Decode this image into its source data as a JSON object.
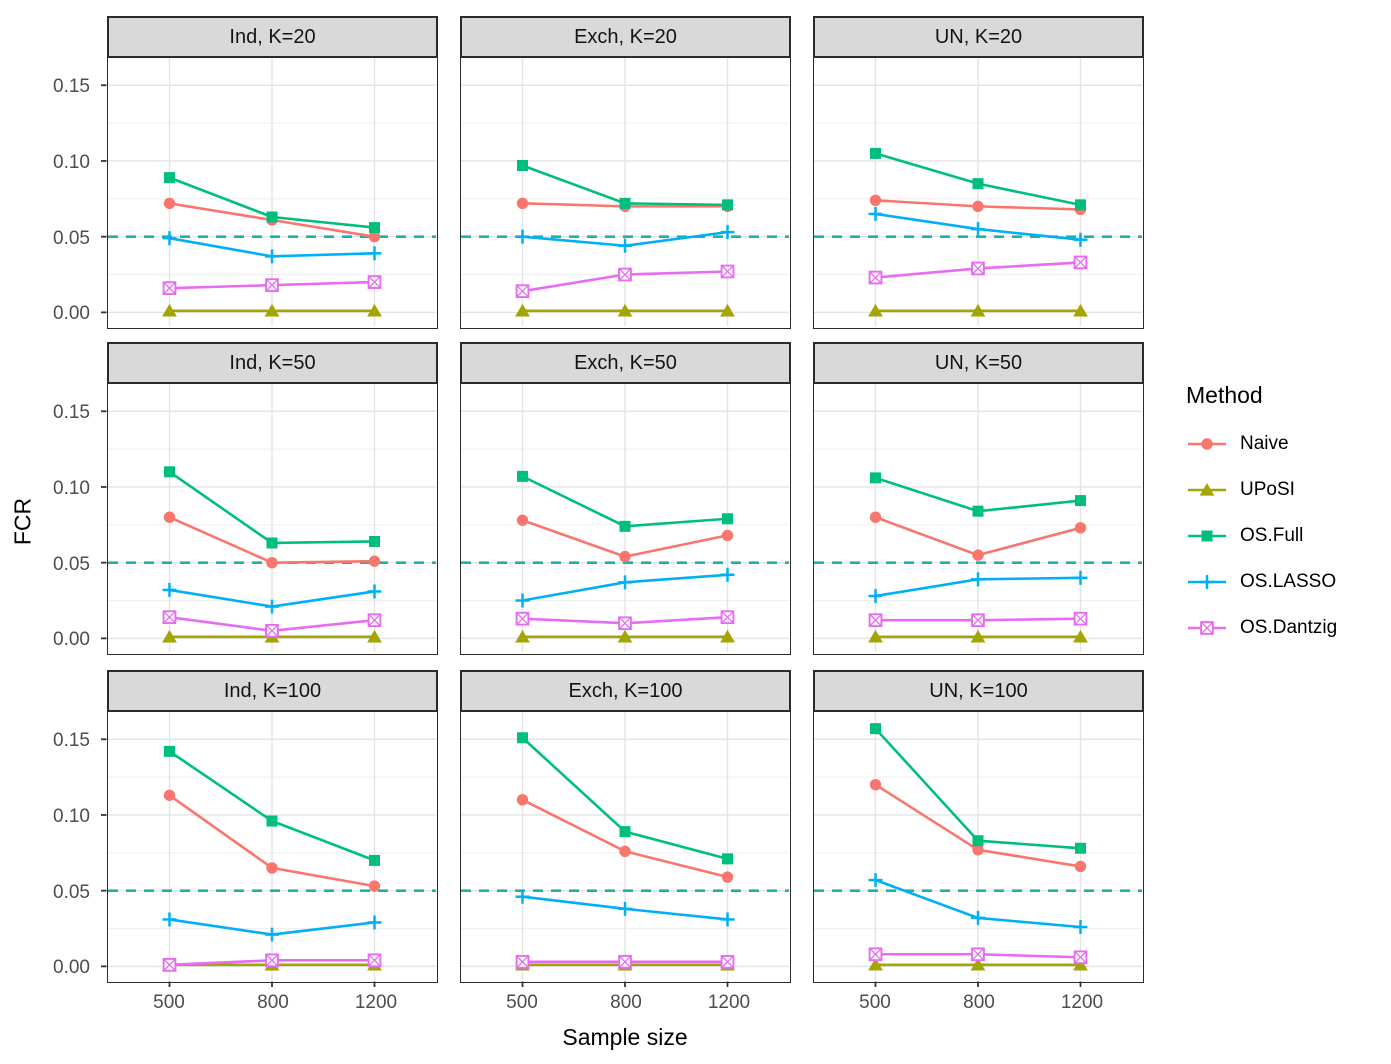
{
  "figure": {
    "x_axis_title": "Sample size",
    "y_axis_title": "FCR"
  },
  "legend": {
    "title": "Method",
    "items": [
      {
        "label": "Naive",
        "color": "#F8766D",
        "marker": "circle"
      },
      {
        "label": "UPoSI",
        "color": "#A3A500",
        "marker": "triangle"
      },
      {
        "label": "OS.Full",
        "color": "#00BF7D",
        "marker": "square"
      },
      {
        "label": "OS.LASSO",
        "color": "#00B0F6",
        "marker": "plus"
      },
      {
        "label": "OS.Dantzig",
        "color": "#E76BF3",
        "marker": "square-x"
      }
    ]
  },
  "chart_data": {
    "type": "line",
    "title": "",
    "xlabel": "Sample size",
    "ylabel": "FCR",
    "x_categories": [
      500,
      800,
      1200
    ],
    "x_tick_labels": [
      "500",
      "800",
      "1200"
    ],
    "y_tick_labels": [
      "0.00",
      "0.05",
      "0.10",
      "0.15"
    ],
    "y_major_ticks": [
      0,
      0.05,
      0.1,
      0.15
    ],
    "y_minor_ticks": [
      0.025,
      0.075,
      0.125
    ],
    "ylim": [
      -0.009,
      0.168
    ],
    "grid": "major-and-minor",
    "legend_position": "right",
    "reference_line": {
      "y": 0.05,
      "style": "dashed",
      "color": "#1CB2A6"
    },
    "series_order": [
      "Naive",
      "UPoSI",
      "OS.Full",
      "OS.LASSO",
      "OS.Dantzig"
    ],
    "facet_layout": {
      "rows": [
        "K=20",
        "K=50",
        "K=100"
      ],
      "cols": [
        "Ind",
        "Exch",
        "UN"
      ]
    },
    "facets": [
      {
        "strip": "Ind, K=20",
        "series": {
          "Naive": [
            0.072,
            0.061,
            0.05
          ],
          "UPoSI": [
            0.001,
            0.001,
            0.001
          ],
          "OS.Full": [
            0.089,
            0.063,
            0.056
          ],
          "OS.LASSO": [
            0.049,
            0.037,
            0.039
          ],
          "OS.Dantzig": [
            0.016,
            0.018,
            0.02
          ]
        }
      },
      {
        "strip": "Exch, K=20",
        "series": {
          "Naive": [
            0.072,
            0.07,
            0.07
          ],
          "UPoSI": [
            0.001,
            0.001,
            0.001
          ],
          "OS.Full": [
            0.097,
            0.072,
            0.071
          ],
          "OS.LASSO": [
            0.05,
            0.044,
            0.053
          ],
          "OS.Dantzig": [
            0.014,
            0.025,
            0.027
          ]
        }
      },
      {
        "strip": "UN, K=20",
        "series": {
          "Naive": [
            0.074,
            0.07,
            0.068
          ],
          "UPoSI": [
            0.001,
            0.001,
            0.001
          ],
          "OS.Full": [
            0.105,
            0.085,
            0.071
          ],
          "OS.LASSO": [
            0.065,
            0.055,
            0.048
          ],
          "OS.Dantzig": [
            0.023,
            0.029,
            0.033
          ]
        }
      },
      {
        "strip": "Ind, K=50",
        "series": {
          "Naive": [
            0.08,
            0.05,
            0.051
          ],
          "UPoSI": [
            0.001,
            0.001,
            0.001
          ],
          "OS.Full": [
            0.11,
            0.063,
            0.064
          ],
          "OS.LASSO": [
            0.032,
            0.021,
            0.031
          ],
          "OS.Dantzig": [
            0.014,
            0.005,
            0.012
          ]
        }
      },
      {
        "strip": "Exch, K=50",
        "series": {
          "Naive": [
            0.078,
            0.054,
            0.068
          ],
          "UPoSI": [
            0.001,
            0.001,
            0.001
          ],
          "OS.Full": [
            0.107,
            0.074,
            0.079
          ],
          "OS.LASSO": [
            0.025,
            0.037,
            0.042
          ],
          "OS.Dantzig": [
            0.013,
            0.01,
            0.014
          ]
        }
      },
      {
        "strip": "UN, K=50",
        "series": {
          "Naive": [
            0.08,
            0.055,
            0.073
          ],
          "UPoSI": [
            0.001,
            0.001,
            0.001
          ],
          "OS.Full": [
            0.106,
            0.084,
            0.091
          ],
          "OS.LASSO": [
            0.028,
            0.039,
            0.04
          ],
          "OS.Dantzig": [
            0.012,
            0.012,
            0.013
          ]
        }
      },
      {
        "strip": "Ind, K=100",
        "series": {
          "Naive": [
            0.113,
            0.065,
            0.053
          ],
          "UPoSI": [
            0.001,
            0.001,
            0.001
          ],
          "OS.Full": [
            0.142,
            0.096,
            0.07
          ],
          "OS.LASSO": [
            0.031,
            0.021,
            0.029
          ],
          "OS.Dantzig": [
            0.001,
            0.004,
            0.004
          ]
        }
      },
      {
        "strip": "Exch, K=100",
        "series": {
          "Naive": [
            0.11,
            0.076,
            0.059
          ],
          "UPoSI": [
            0.001,
            0.001,
            0.001
          ],
          "OS.Full": [
            0.151,
            0.089,
            0.071
          ],
          "OS.LASSO": [
            0.046,
            0.038,
            0.031
          ],
          "OS.Dantzig": [
            0.003,
            0.003,
            0.003
          ]
        }
      },
      {
        "strip": "UN, K=100",
        "series": {
          "Naive": [
            0.12,
            0.077,
            0.066
          ],
          "UPoSI": [
            0.001,
            0.001,
            0.001
          ],
          "OS.Full": [
            0.157,
            0.083,
            0.078
          ],
          "OS.LASSO": [
            0.057,
            0.032,
            0.026
          ],
          "OS.Dantzig": [
            0.008,
            0.008,
            0.006
          ]
        }
      }
    ]
  }
}
